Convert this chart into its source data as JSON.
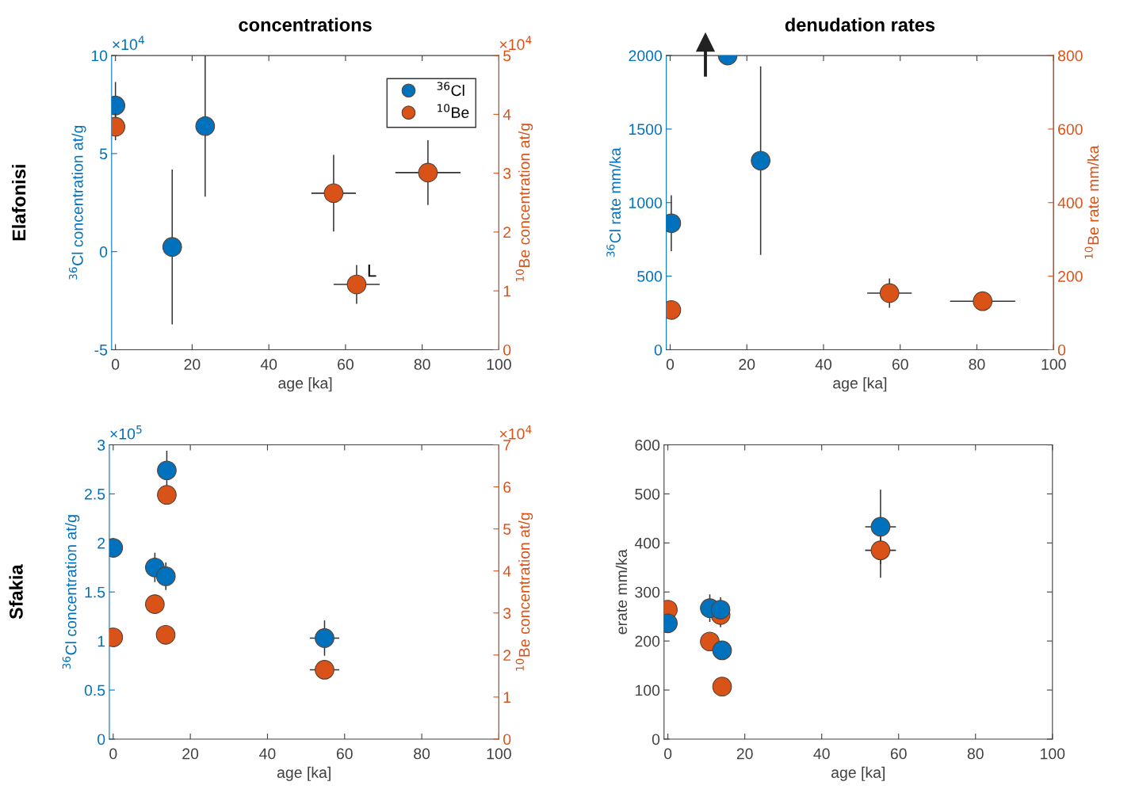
{
  "chart_data": [
    {
      "type": "scatter",
      "title": "concentrations",
      "subtitle": "Elafonisi",
      "xlabel": "age [ka]",
      "ylabel": "$^{36}$Cl concentration at/g",
      "y2label": "$^{10}$Be concentration at/g",
      "xlim": [
        -1,
        100
      ],
      "xticks": [
        0,
        20,
        40,
        60,
        80,
        100
      ],
      "ylim": [
        -5,
        10
      ],
      "yticks": [
        -5,
        0,
        5,
        10
      ],
      "y2lim": [
        0,
        5
      ],
      "y2ticks": [
        0,
        1,
        2,
        3,
        4,
        5
      ],
      "marker": "circle",
      "grid": false,
      "legend": "top right",
      "annotations": [
        "×10$^{4}$",
        "×10$^{4}$",
        {
          "text": "L",
          "x": 63,
          "y": -1.67
        }
      ],
      "series": [
        {
          "name": "$^{36}$Cl",
          "color": "#0072bd",
          "x": [
            0,
            14.8,
            23.4
          ],
          "values": [
            7.45,
            0.24,
            6.4
          ],
          "errors": [
            1.2,
            3.95,
            3.6
          ],
          "xerrors": [
            null,
            null,
            null
          ]
        },
        {
          "name": "$^{10}$Be",
          "color": "#d95319",
          "axis": "y2",
          "x": [
            0,
            56.9,
            62.9,
            81.5
          ],
          "values": [
            3.79,
            2.66,
            1.11,
            3.01
          ],
          "errors": [
            0.23,
            0.65,
            0.33,
            0.55
          ],
          "xerrors": [
            null,
            5.8,
            6,
            8.5
          ]
        }
      ]
    },
    {
      "type": "scatter",
      "title": "denudation rates",
      "xlabel": "age [ka]",
      "ylabel": "$^{36}$Cl rate mm/ka",
      "y2label": "$^{10}$Be rate mm/ka",
      "xlim": [
        -1,
        100
      ],
      "xticks": [
        0,
        20,
        40,
        60,
        80,
        100
      ],
      "ylim": [
        0,
        2000
      ],
      "yticks": [
        0,
        500,
        1000,
        1500,
        2000
      ],
      "y2lim": [
        0,
        800
      ],
      "y2ticks": [
        0,
        200,
        400,
        600,
        800
      ],
      "marker": "circle",
      "grid": false,
      "legend": false,
      "series": [
        {
          "color": "#0072bd",
          "x": [
            0.3,
            15,
            23.6
          ],
          "values": [
            860,
            2000,
            1285
          ],
          "errors": [
            190,
            null,
            641
          ],
          "xerrors": [
            null,
            null,
            null
          ]
        },
        {
          "color": "#d95319",
          "axis": "y2",
          "x": [
            0.3,
            57.2,
            81.5
          ],
          "values": [
            108,
            154,
            132
          ],
          "errors": [
            null,
            40,
            null
          ],
          "xerrors": [
            null,
            5.8,
            8.5
          ]
        }
      ]
    },
    {
      "type": "scatter",
      "subtitle": "Sfakia",
      "xlabel": "age [ka]",
      "ylabel": "$^{36}$Cl concentration at/g",
      "y2label": "$^{10}$Be concentration at/g",
      "xlim": [
        -1,
        100
      ],
      "xticks": [
        0,
        20,
        40,
        60,
        80,
        100
      ],
      "ylim": [
        0,
        3
      ],
      "yticks": [
        0,
        0.5,
        1,
        1.5,
        2,
        2.5,
        3
      ],
      "y2lim": [
        0,
        7
      ],
      "y2ticks": [
        0,
        1,
        2,
        3,
        4,
        5,
        6,
        7
      ],
      "marker": "circle",
      "grid": false,
      "legend": false,
      "annotations": [
        "×10$^{5}$",
        "×10$^{4}$"
      ],
      "series": [
        {
          "color": "#0072bd",
          "x": [
            0,
            10.8,
            13.65,
            13.9,
            54.8
          ],
          "values": [
            1.95,
            1.75,
            1.66,
            2.74,
            1.03
          ],
          "errors": [
            0.1,
            0.15,
            0.14,
            0.2,
            0.18
          ],
          "xerrors": [
            null,
            null,
            null,
            null,
            3.8
          ]
        },
        {
          "color": "#d95319",
          "axis": "y2",
          "x": [
            0,
            10.8,
            13.6,
            13.9,
            54.8
          ],
          "values": [
            2.42,
            3.21,
            2.48,
            5.81,
            1.65
          ],
          "errors": [
            null,
            null,
            null,
            null,
            null
          ],
          "xerrors": [
            null,
            null,
            null,
            null,
            3.8
          ]
        }
      ]
    },
    {
      "type": "scatter",
      "xlabel": "age [ka]",
      "ylabel": "erate mm/ka",
      "xlim": [
        -1,
        100
      ],
      "xticks": [
        0,
        20,
        40,
        60,
        80,
        100
      ],
      "ylim": [
        0,
        600
      ],
      "yticks": [
        0,
        100,
        200,
        300,
        400,
        500,
        600
      ],
      "marker": "circle",
      "grid": false,
      "legend": false,
      "series": [
        {
          "color": "#d95319",
          "x": [
            0,
            10.9,
            13.7,
            14.1,
            55.3
          ],
          "values": [
            264,
            199,
            253,
            107,
            385
          ],
          "errors": [
            null,
            null,
            25,
            null,
            56
          ],
          "xerrors": [
            null,
            null,
            null,
            null,
            4
          ]
        },
        {
          "color": "#0072bd",
          "x": [
            0,
            10.9,
            13.7,
            14.1,
            55.3
          ],
          "values": [
            236,
            267,
            264,
            181,
            433
          ],
          "errors": [
            null,
            28,
            25,
            null,
            76
          ],
          "xerrors": [
            null,
            null,
            null,
            null,
            4
          ]
        }
      ]
    }
  ]
}
